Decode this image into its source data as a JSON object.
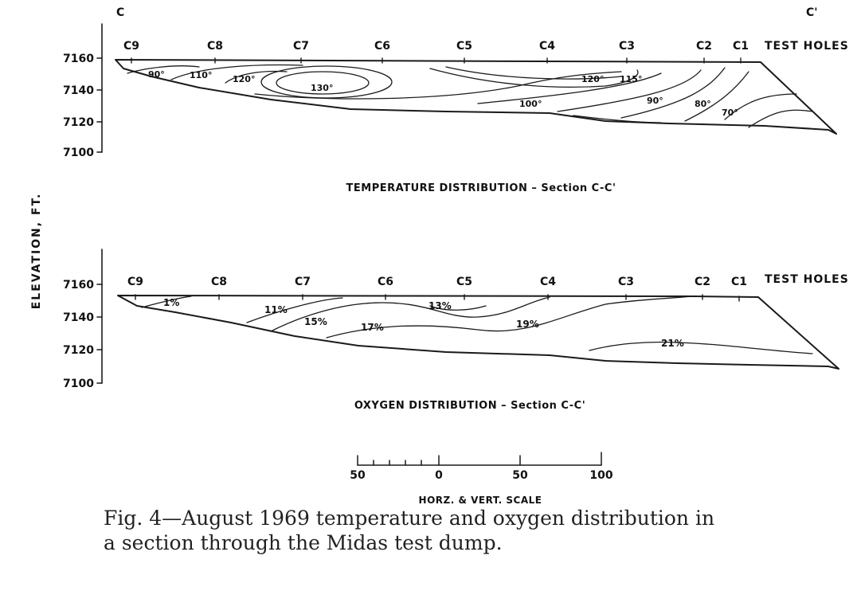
{
  "section_ends": {
    "left": "C",
    "right": "C'"
  },
  "y_axis_label": "ELEVATION, FT.",
  "panels": [
    {
      "id": "temperature",
      "title": "TEMPERATURE DISTRIBUTION  –  Section C-C'",
      "y_ticks": [
        "7160",
        "7140",
        "7120",
        "7100"
      ],
      "test_holes_label": "TEST HOLES",
      "test_holes": [
        "C9",
        "C8",
        "C7",
        "C6",
        "C5",
        "C4",
        "C3",
        "C2",
        "C1"
      ],
      "contour_labels": [
        "90°",
        "110°",
        "120°",
        "130°",
        "120°",
        "115°",
        "100°",
        "90°",
        "80°",
        "70°"
      ]
    },
    {
      "id": "oxygen",
      "title": "OXYGEN DISTRIBUTION  –  Section C-C'",
      "y_ticks": [
        "7160",
        "7140",
        "7120",
        "7100"
      ],
      "test_holes_label": "TEST HOLES",
      "test_holes": [
        "C9",
        "C8",
        "C7",
        "C6",
        "C5",
        "C4",
        "C3",
        "C2",
        "C1"
      ],
      "contour_labels": [
        "1%",
        "11%",
        "13%",
        "15%",
        "17%",
        "19%",
        "21%"
      ]
    }
  ],
  "scale_bar": {
    "ticks": [
      "50",
      "0",
      "50",
      "100"
    ],
    "label": "HORZ. & VERT. SCALE"
  },
  "caption": {
    "line1": "Fig. 4—August 1969 temperature and oxygen distribution in",
    "line2": "a section through the Midas test dump."
  }
}
